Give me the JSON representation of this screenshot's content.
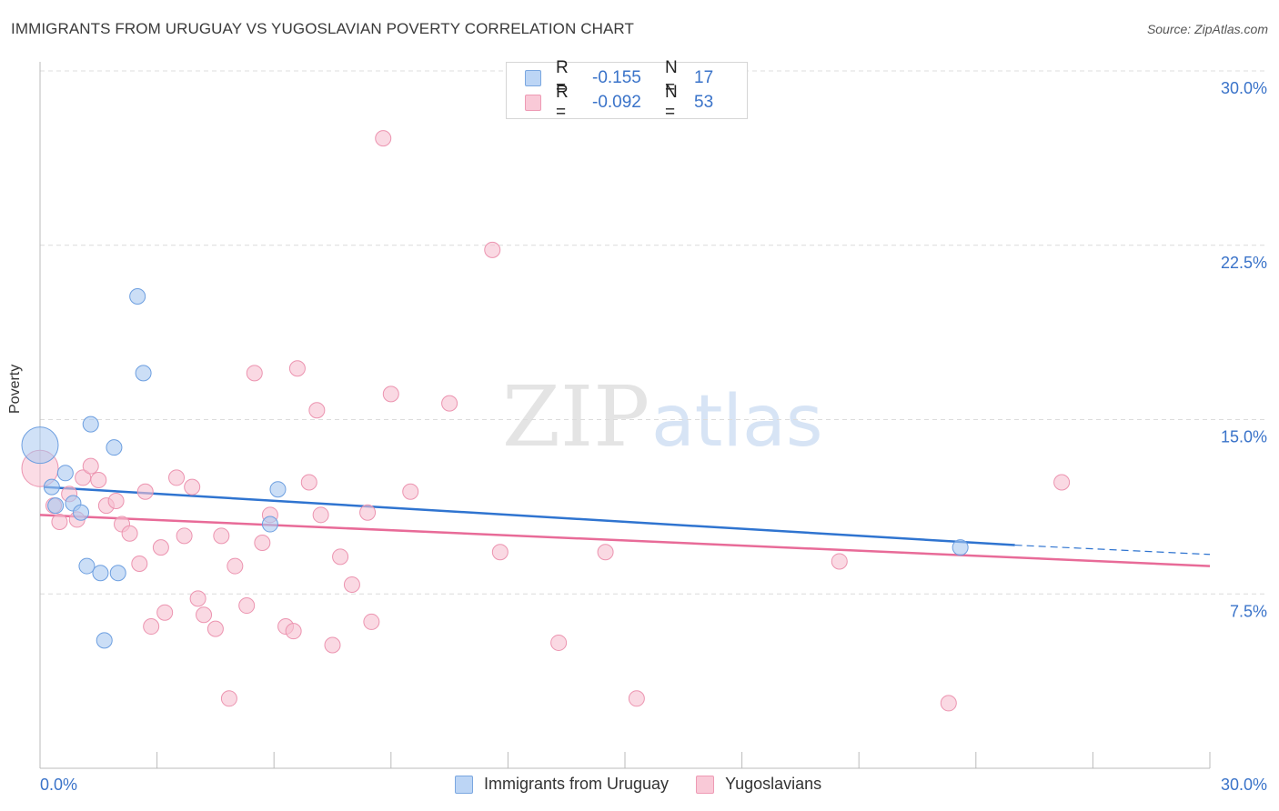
{
  "title": "IMMIGRANTS FROM URUGUAY VS YUGOSLAVIAN POVERTY CORRELATION CHART",
  "source": "Source: ZipAtlas.com",
  "watermark": {
    "part1": "ZIP",
    "part2": "atlas"
  },
  "colors": {
    "series1_fill": "#a9c8f0",
    "series1_stroke": "#6d9fe0",
    "series1_line": "#2f74d0",
    "series2_fill": "#f7bfd0",
    "series2_stroke": "#ec94b0",
    "series2_line": "#e86b98",
    "axis_value": "#3a73c9",
    "grid": "#dcdcdc"
  },
  "legend_top": [
    {
      "r_label": "R =",
      "r_value": "-0.155",
      "n_label": "N =",
      "n_value": "17"
    },
    {
      "r_label": "R =",
      "r_value": "-0.092",
      "n_label": "N =",
      "n_value": "53"
    }
  ],
  "legend_bottom": [
    "Immigrants from Uruguay",
    "Yugoslavians"
  ],
  "chart_data": {
    "type": "scatter",
    "title": "IMMIGRANTS FROM URUGUAY VS YUGOSLAVIAN POVERTY CORRELATION CHART",
    "xlabel": "",
    "ylabel": "Poverty",
    "xlim": [
      0,
      30
    ],
    "ylim": [
      0,
      30
    ],
    "x_tick_labels": [
      "0.0%",
      "30.0%"
    ],
    "y_ticks": [
      7.5,
      15.0,
      22.5,
      30.0
    ],
    "y_tick_labels": [
      "7.5%",
      "15.0%",
      "22.5%",
      "30.0%"
    ],
    "grid": true,
    "series": [
      {
        "name": "Immigrants from Uruguay",
        "trend": {
          "x": [
            0.1,
            25.0
          ],
          "y": [
            12.1,
            9.6
          ],
          "dashed_to": [
            30.0,
            9.2
          ]
        },
        "points": [
          {
            "x": 0.0,
            "y": 13.9,
            "big": true
          },
          {
            "x": 0.3,
            "y": 12.1
          },
          {
            "x": 0.4,
            "y": 11.3
          },
          {
            "x": 0.65,
            "y": 12.7
          },
          {
            "x": 0.85,
            "y": 11.4
          },
          {
            "x": 1.05,
            "y": 11.0
          },
          {
            "x": 1.2,
            "y": 8.7
          },
          {
            "x": 1.3,
            "y": 14.8
          },
          {
            "x": 1.55,
            "y": 8.4
          },
          {
            "x": 1.65,
            "y": 5.5
          },
          {
            "x": 1.9,
            "y": 13.8
          },
          {
            "x": 2.0,
            "y": 8.4
          },
          {
            "x": 2.5,
            "y": 20.3
          },
          {
            "x": 2.65,
            "y": 17.0
          },
          {
            "x": 5.9,
            "y": 10.5
          },
          {
            "x": 6.1,
            "y": 12.0
          },
          {
            "x": 23.6,
            "y": 9.5
          }
        ]
      },
      {
        "name": "Yugoslavians",
        "trend": {
          "x": [
            0.0,
            30.0
          ],
          "y": [
            10.9,
            8.7
          ]
        },
        "points": [
          {
            "x": 0.0,
            "y": 12.9,
            "big": true
          },
          {
            "x": 0.35,
            "y": 11.3
          },
          {
            "x": 0.5,
            "y": 10.6
          },
          {
            "x": 0.75,
            "y": 11.8
          },
          {
            "x": 0.95,
            "y": 10.7
          },
          {
            "x": 1.1,
            "y": 12.5
          },
          {
            "x": 1.3,
            "y": 13.0
          },
          {
            "x": 1.5,
            "y": 12.4
          },
          {
            "x": 1.7,
            "y": 11.3
          },
          {
            "x": 1.95,
            "y": 11.5
          },
          {
            "x": 2.1,
            "y": 10.5
          },
          {
            "x": 2.3,
            "y": 10.1
          },
          {
            "x": 2.55,
            "y": 8.8
          },
          {
            "x": 2.7,
            "y": 11.9
          },
          {
            "x": 2.85,
            "y": 6.1
          },
          {
            "x": 3.1,
            "y": 9.5
          },
          {
            "x": 3.2,
            "y": 6.7
          },
          {
            "x": 3.5,
            "y": 12.5
          },
          {
            "x": 3.7,
            "y": 10.0
          },
          {
            "x": 3.9,
            "y": 12.1
          },
          {
            "x": 4.05,
            "y": 7.3
          },
          {
            "x": 4.2,
            "y": 6.6
          },
          {
            "x": 4.5,
            "y": 6.0
          },
          {
            "x": 4.65,
            "y": 10.0
          },
          {
            "x": 4.85,
            "y": 3.0
          },
          {
            "x": 5.0,
            "y": 8.7
          },
          {
            "x": 5.3,
            "y": 7.0
          },
          {
            "x": 5.5,
            "y": 17.0
          },
          {
            "x": 5.7,
            "y": 9.7
          },
          {
            "x": 5.9,
            "y": 10.9
          },
          {
            "x": 6.3,
            "y": 6.1
          },
          {
            "x": 6.5,
            "y": 5.9
          },
          {
            "x": 6.6,
            "y": 17.2
          },
          {
            "x": 6.9,
            "y": 12.3
          },
          {
            "x": 7.1,
            "y": 15.4
          },
          {
            "x": 7.2,
            "y": 10.9
          },
          {
            "x": 7.5,
            "y": 5.3
          },
          {
            "x": 7.7,
            "y": 9.1
          },
          {
            "x": 8.0,
            "y": 7.9
          },
          {
            "x": 8.4,
            "y": 11.0
          },
          {
            "x": 8.5,
            "y": 6.3
          },
          {
            "x": 8.8,
            "y": 27.1
          },
          {
            "x": 9.0,
            "y": 16.1
          },
          {
            "x": 9.5,
            "y": 11.9
          },
          {
            "x": 10.5,
            "y": 15.7
          },
          {
            "x": 11.6,
            "y": 22.3
          },
          {
            "x": 11.8,
            "y": 9.3
          },
          {
            "x": 13.3,
            "y": 5.4
          },
          {
            "x": 14.5,
            "y": 9.3
          },
          {
            "x": 15.3,
            "y": 3.0
          },
          {
            "x": 20.5,
            "y": 8.9
          },
          {
            "x": 23.3,
            "y": 2.8
          },
          {
            "x": 26.2,
            "y": 12.3
          }
        ]
      }
    ]
  }
}
